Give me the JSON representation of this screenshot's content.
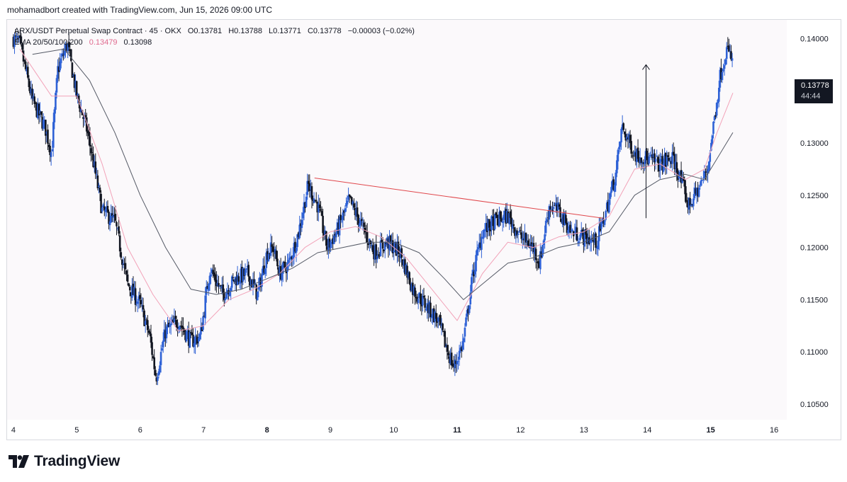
{
  "header": {
    "text": "mohamadbort created with TradingView.com, Jun 15, 2026 09:00 UTC"
  },
  "legend": {
    "symbol": "ARX/USDT Perpetual Swap Contract · 45 · OKX",
    "open": "O0.13781",
    "high": "H0.13788",
    "low": "L0.13771",
    "close": "C0.13778",
    "change": "−0.00003 (−0.02%)",
    "ema_label": "EMA 20/50/100/200",
    "ema_value_1": "0.13479",
    "ema_value_2": "0.13098"
  },
  "price_tag": {
    "price": "0.13778",
    "countdown": "44:44"
  },
  "footer": {
    "brand": "TradingView",
    "logo_icon": "tradingview-logo-icon"
  },
  "colors": {
    "bull": "#2f62d6",
    "bear": "#131722",
    "ema_fast": "#f2a2b8",
    "ema_slow": "#555a66",
    "trendline": "#e0474b",
    "arrow": "#131722",
    "background": "#fbf9fb"
  },
  "chart_data": {
    "type": "candlestick",
    "ylim": [
      0.1035,
      0.1418
    ],
    "xlim": [
      3.9,
      16.2
    ],
    "y_ticks": [
      "0.14000",
      "0.13500",
      "0.13000",
      "0.12500",
      "0.12000",
      "0.11500",
      "0.11000",
      "0.10500"
    ],
    "y_tick_values": [
      0.14,
      0.135,
      0.13,
      0.125,
      0.12,
      0.115,
      0.11,
      0.105
    ],
    "x_ticks": [
      "4",
      "5",
      "6",
      "7",
      "8",
      "9",
      "10",
      "11",
      "12",
      "13",
      "14",
      "15",
      "16"
    ],
    "x_tick_values": [
      4,
      5,
      6,
      7,
      8,
      9,
      10,
      11,
      12,
      13,
      14,
      15,
      16
    ],
    "bold_x_ticks": [
      "8",
      "11",
      "15"
    ],
    "price_path": [
      [
        4.0,
        0.14
      ],
      [
        4.1,
        0.1395
      ],
      [
        4.3,
        0.134
      ],
      [
        4.5,
        0.1315
      ],
      [
        4.6,
        0.129
      ],
      [
        4.7,
        0.137
      ],
      [
        4.85,
        0.1395
      ],
      [
        5.0,
        0.1345
      ],
      [
        5.15,
        0.1315
      ],
      [
        5.25,
        0.1285
      ],
      [
        5.4,
        0.1235
      ],
      [
        5.6,
        0.1225
      ],
      [
        5.8,
        0.1165
      ],
      [
        6.0,
        0.1145
      ],
      [
        6.15,
        0.1115
      ],
      [
        6.25,
        0.1075
      ],
      [
        6.4,
        0.112
      ],
      [
        6.6,
        0.113
      ],
      [
        6.8,
        0.111
      ],
      [
        6.95,
        0.1115
      ],
      [
        7.1,
        0.118
      ],
      [
        7.3,
        0.1155
      ],
      [
        7.5,
        0.117
      ],
      [
        7.7,
        0.1175
      ],
      [
        7.85,
        0.1155
      ],
      [
        8.0,
        0.1195
      ],
      [
        8.1,
        0.12
      ],
      [
        8.2,
        0.1175
      ],
      [
        8.35,
        0.1185
      ],
      [
        8.5,
        0.1215
      ],
      [
        8.65,
        0.126
      ],
      [
        8.8,
        0.124
      ],
      [
        8.95,
        0.12
      ],
      [
        9.1,
        0.1215
      ],
      [
        9.3,
        0.1245
      ],
      [
        9.5,
        0.122
      ],
      [
        9.7,
        0.1195
      ],
      [
        9.9,
        0.1205
      ],
      [
        10.1,
        0.1195
      ],
      [
        10.3,
        0.116
      ],
      [
        10.5,
        0.1145
      ],
      [
        10.7,
        0.113
      ],
      [
        10.85,
        0.11
      ],
      [
        10.95,
        0.1085
      ],
      [
        11.1,
        0.111
      ],
      [
        11.25,
        0.1175
      ],
      [
        11.4,
        0.1215
      ],
      [
        11.6,
        0.1225
      ],
      [
        11.8,
        0.123
      ],
      [
        12.0,
        0.121
      ],
      [
        12.2,
        0.12
      ],
      [
        12.3,
        0.1185
      ],
      [
        12.45,
        0.124
      ],
      [
        12.6,
        0.1235
      ],
      [
        12.8,
        0.1215
      ],
      [
        13.0,
        0.121
      ],
      [
        13.2,
        0.1205
      ],
      [
        13.35,
        0.1235
      ],
      [
        13.5,
        0.127
      ],
      [
        13.6,
        0.1315
      ],
      [
        13.8,
        0.129
      ],
      [
        14.0,
        0.1285
      ],
      [
        14.2,
        0.128
      ],
      [
        14.4,
        0.1285
      ],
      [
        14.5,
        0.127
      ],
      [
        14.65,
        0.124
      ],
      [
        14.8,
        0.1255
      ],
      [
        14.95,
        0.1275
      ],
      [
        15.05,
        0.132
      ],
      [
        15.15,
        0.1365
      ],
      [
        15.25,
        0.139
      ],
      [
        15.35,
        0.1378
      ]
    ],
    "ema_fast": [
      [
        4.1,
        0.139
      ],
      [
        4.6,
        0.1345
      ],
      [
        5.0,
        0.1345
      ],
      [
        5.4,
        0.128
      ],
      [
        5.8,
        0.12
      ],
      [
        6.2,
        0.1155
      ],
      [
        6.6,
        0.112
      ],
      [
        7.0,
        0.1125
      ],
      [
        7.4,
        0.115
      ],
      [
        7.8,
        0.116
      ],
      [
        8.2,
        0.1175
      ],
      [
        8.6,
        0.12
      ],
      [
        9.0,
        0.1215
      ],
      [
        9.4,
        0.122
      ],
      [
        9.8,
        0.121
      ],
      [
        10.2,
        0.119
      ],
      [
        10.6,
        0.116
      ],
      [
        11.0,
        0.113
      ],
      [
        11.4,
        0.1175
      ],
      [
        11.8,
        0.1205
      ],
      [
        12.2,
        0.12
      ],
      [
        12.6,
        0.121
      ],
      [
        13.0,
        0.1215
      ],
      [
        13.4,
        0.123
      ],
      [
        13.8,
        0.1275
      ],
      [
        14.2,
        0.128
      ],
      [
        14.6,
        0.1265
      ],
      [
        14.9,
        0.1275
      ],
      [
        15.1,
        0.131
      ],
      [
        15.35,
        0.1348
      ]
    ],
    "ema_slow": [
      [
        4.3,
        0.1385
      ],
      [
        4.8,
        0.139
      ],
      [
        5.2,
        0.136
      ],
      [
        5.6,
        0.131
      ],
      [
        6.0,
        0.125
      ],
      [
        6.4,
        0.12
      ],
      [
        6.8,
        0.116
      ],
      [
        7.2,
        0.1155
      ],
      [
        7.6,
        0.116
      ],
      [
        8.0,
        0.117
      ],
      [
        8.4,
        0.118
      ],
      [
        8.8,
        0.1195
      ],
      [
        9.2,
        0.12
      ],
      [
        9.6,
        0.1205
      ],
      [
        10.0,
        0.1205
      ],
      [
        10.4,
        0.1195
      ],
      [
        10.8,
        0.117
      ],
      [
        11.1,
        0.115
      ],
      [
        11.4,
        0.1165
      ],
      [
        11.8,
        0.1185
      ],
      [
        12.2,
        0.119
      ],
      [
        12.6,
        0.12
      ],
      [
        13.0,
        0.1205
      ],
      [
        13.4,
        0.1215
      ],
      [
        13.8,
        0.125
      ],
      [
        14.2,
        0.1265
      ],
      [
        14.6,
        0.127
      ],
      [
        14.9,
        0.1265
      ],
      [
        15.1,
        0.1285
      ],
      [
        15.35,
        0.131
      ]
    ],
    "trendline": {
      "from": [
        8.75,
        0.12665
      ],
      "to": [
        13.3,
        0.1228
      ]
    },
    "arrow": {
      "x": 13.98,
      "from": 0.1228,
      "to": 0.1375
    }
  }
}
